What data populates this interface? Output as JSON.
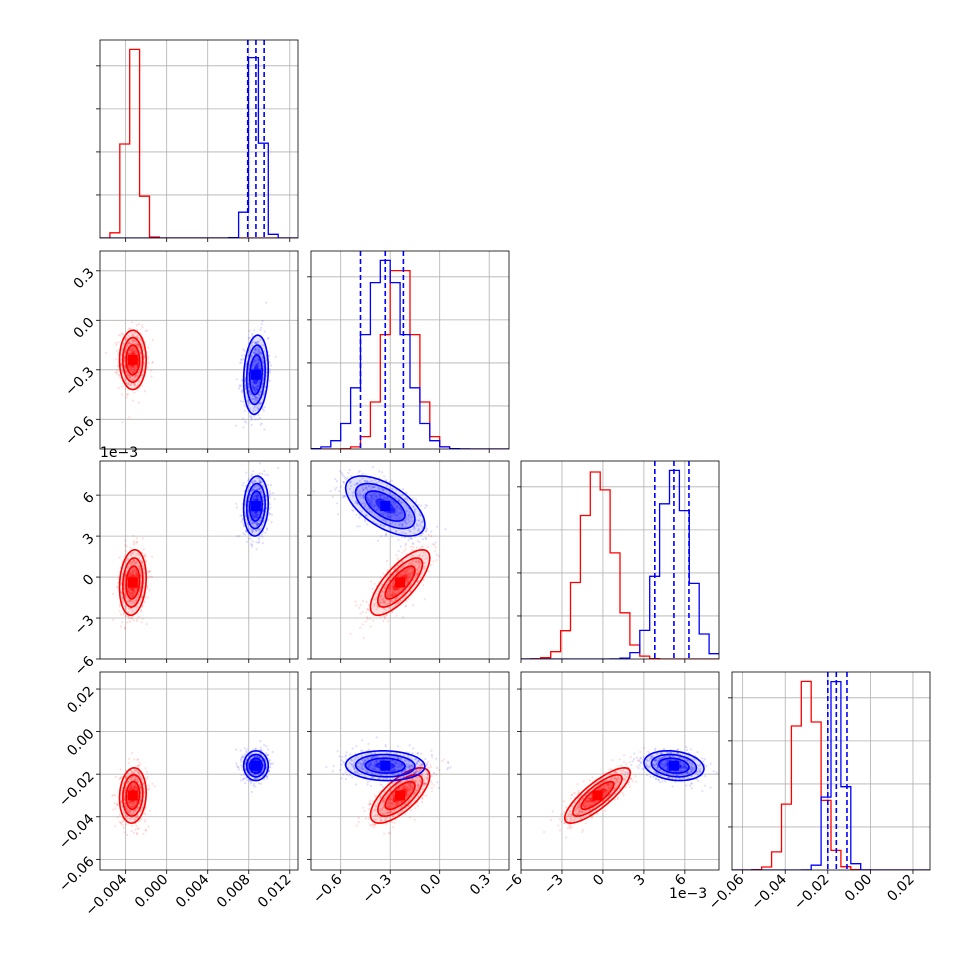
{
  "chart_data": {
    "type": "corner",
    "title": "",
    "series": [
      {
        "name": "",
        "color": "#ff0000"
      },
      {
        "name": "",
        "color": "#0000ff"
      }
    ],
    "dashed_quantile_lines_series": "blue",
    "grid": true,
    "parameters": [
      {
        "range": [
          -0.0065,
          0.0128
        ],
        "ticks": [
          -0.004,
          0.0,
          0.004,
          0.008,
          0.012
        ],
        "tick_labels": [
          "−0.004",
          "0.000",
          "0.004",
          "0.008",
          "0.012"
        ],
        "offset_label": "",
        "red": {
          "median": -0.0033,
          "sigma": 0.00065
        },
        "blue": {
          "median": 0.0087,
          "sigma": 0.0006,
          "quantiles": [
            0.0079,
            0.0087,
            0.0095
          ]
        }
      },
      {
        "range": [
          -0.78,
          0.42
        ],
        "ticks": [
          -0.6,
          -0.3,
          0.0,
          0.3
        ],
        "tick_labels": [
          "−0.6",
          "−0.3",
          "0.0",
          "0.3"
        ],
        "offset_label": "",
        "red": {
          "median": -0.24,
          "sigma": 0.09
        },
        "blue": {
          "median": -0.33,
          "sigma": 0.12,
          "quantiles": [
            -0.48,
            -0.33,
            -0.22
          ]
        }
      },
      {
        "range": [
          -0.006,
          0.0085
        ],
        "ticks": [
          -0.006,
          -0.003,
          0.0,
          0.003,
          0.006
        ],
        "tick_labels": [
          "−6",
          "−3",
          "0",
          "3",
          "6"
        ],
        "offset_label": "1e−3",
        "red": {
          "median": -0.0004,
          "sigma": 0.0012
        },
        "blue": {
          "median": 0.0052,
          "sigma": 0.0011,
          "quantiles": [
            0.0038,
            0.0052,
            0.0063
          ]
        }
      },
      {
        "range": [
          -0.065,
          0.028
        ],
        "ticks": [
          -0.06,
          -0.04,
          -0.02,
          0.0,
          0.02
        ],
        "tick_labels": [
          "−0.06",
          "−0.04",
          "−0.02",
          "0.00",
          "0.02"
        ],
        "offset_label": "",
        "red": {
          "median": -0.03,
          "sigma": 0.0065
        },
        "blue": {
          "median": -0.016,
          "sigma": 0.0035,
          "quantiles": [
            -0.02,
            -0.016,
            -0.011
          ]
        }
      }
    ],
    "correlations": {
      "red": {
        "1-0": 0.0,
        "2-0": 0.15,
        "3-0": 0.1,
        "2-1": 0.75,
        "3-1": 0.7,
        "3-2": 0.82
      },
      "blue": {
        "1-0": 0.15,
        "2-0": 0.1,
        "3-0": 0.0,
        "2-1": -0.6,
        "3-1": -0.05,
        "3-2": -0.2
      }
    }
  }
}
